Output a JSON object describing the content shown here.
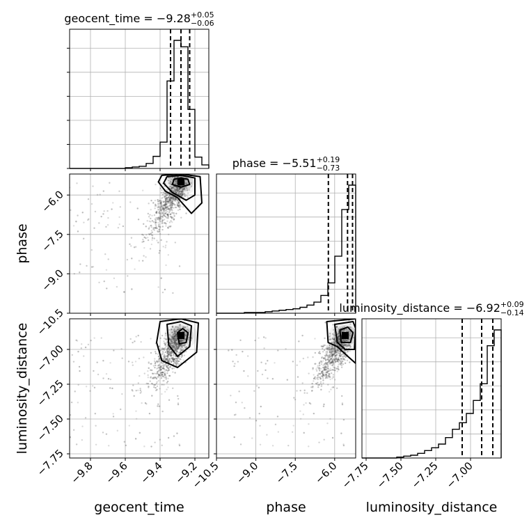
{
  "chart_data": {
    "type": "corner",
    "parameters": [
      {
        "name": "geocent_time",
        "axis_label": "geocent_time",
        "range": [
          -9.92,
          -9.12
        ],
        "ticks": [
          "−9.8",
          "−9.6",
          "−9.4",
          "−9.2"
        ],
        "tick_values": [
          -9.8,
          -9.6,
          -9.4,
          -9.2
        ],
        "title": {
          "prefix": "geocent_time = ",
          "median": "−9.28",
          "plus": "+0.05",
          "minus": "−0.06"
        },
        "quantiles": [
          -9.34,
          -9.28,
          -9.23
        ],
        "histogram": {
          "edges": [
            -9.92,
            -9.88,
            -9.84,
            -9.8,
            -9.76,
            -9.72,
            -9.68,
            -9.64,
            -9.6,
            -9.56,
            -9.52,
            -9.48,
            -9.44,
            -9.4,
            -9.36,
            -9.32,
            -9.28,
            -9.24,
            -9.2,
            -9.16,
            -9.12
          ],
          "counts": [
            0,
            0,
            0,
            0,
            0,
            0,
            0,
            0,
            1,
            2,
            3,
            7,
            17,
            37,
            123,
            180,
            171,
            83,
            16,
            5
          ]
        }
      },
      {
        "name": "phase",
        "axis_label": "phase",
        "range": [
          -10.5,
          -5.2
        ],
        "ticks": [
          "−10.5",
          "−9.0",
          "−7.5",
          "−6.0"
        ],
        "tick_values": [
          -10.5,
          -9.0,
          -7.5,
          -6.0
        ],
        "title": {
          "prefix": "phase = ",
          "median": "−5.51",
          "plus": "+0.19",
          "minus": "−0.73"
        },
        "quantiles": [
          -6.24,
          -5.51,
          -5.32
        ],
        "histogram": {
          "edges": [
            -10.5,
            -10.235,
            -9.97,
            -9.705,
            -9.44,
            -9.175,
            -8.91,
            -8.645,
            -8.38,
            -8.115,
            -7.85,
            -7.585,
            -7.32,
            -7.055,
            -6.79,
            -6.525,
            -6.26,
            -5.995,
            -5.73,
            -5.465,
            -5.2
          ],
          "counts": [
            0,
            0,
            0,
            0,
            1,
            1,
            1,
            2,
            3,
            4,
            5,
            6,
            8,
            11,
            15,
            24,
            41,
            77,
            140,
            173
          ]
        }
      },
      {
        "name": "luminosity_distance",
        "axis_label": "luminosity_distance",
        "range": [
          -7.78,
          -6.78
        ],
        "ticks": [
          "−7.75",
          "−7.50",
          "−7.25",
          "−7.00"
        ],
        "tick_values": [
          -7.75,
          -7.5,
          -7.25,
          -7.0
        ],
        "title": {
          "prefix": "luminosity_distance = ",
          "median": "−6.92",
          "plus": "+0.09",
          "minus": "−0.14"
        },
        "quantiles": [
          -7.06,
          -6.92,
          -6.84
        ],
        "histogram": {
          "edges": [
            -7.78,
            -7.73,
            -7.68,
            -7.63,
            -7.58,
            -7.53,
            -7.48,
            -7.43,
            -7.38,
            -7.33,
            -7.28,
            -7.23,
            -7.18,
            -7.13,
            -7.08,
            -7.03,
            -6.98,
            -6.93,
            -6.88,
            -6.83,
            -6.78
          ],
          "counts": [
            0,
            0,
            0,
            0,
            0,
            1,
            2,
            3,
            5,
            8,
            11,
            15,
            22,
            31,
            38,
            48,
            62,
            80,
            121,
            138
          ]
        }
      }
    ],
    "pairs": [
      {
        "x": "geocent_time",
        "y": "phase",
        "density_peak": [
          -9.28,
          -5.5
        ],
        "contours": [
          [
            [
              -9.32,
              -5.4
            ],
            [
              -9.28,
              -5.35
            ],
            [
              -9.24,
              -5.4
            ],
            [
              -9.23,
              -5.6
            ],
            [
              -9.28,
              -5.7
            ],
            [
              -9.33,
              -5.6
            ]
          ],
          [
            [
              -9.36,
              -5.3
            ],
            [
              -9.28,
              -5.25
            ],
            [
              -9.2,
              -5.35
            ],
            [
              -9.2,
              -6.0
            ],
            [
              -9.25,
              -6.2
            ],
            [
              -9.33,
              -5.9
            ],
            [
              -9.38,
              -5.55
            ]
          ],
          [
            [
              -9.39,
              -5.25
            ],
            [
              -9.28,
              -5.2
            ],
            [
              -9.17,
              -5.3
            ],
            [
              -9.16,
              -6.3
            ],
            [
              -9.22,
              -6.7
            ],
            [
              -9.3,
              -6.1
            ],
            [
              -9.37,
              -5.85
            ],
            [
              -9.41,
              -5.5
            ]
          ]
        ]
      },
      {
        "x": "geocent_time",
        "y": "luminosity_distance",
        "density_peak": [
          -9.28,
          -6.9
        ],
        "contours": [
          [
            [
              -9.3,
              -6.88
            ],
            [
              -9.27,
              -6.85
            ],
            [
              -9.24,
              -6.88
            ],
            [
              -9.25,
              -6.95
            ],
            [
              -9.29,
              -6.96
            ]
          ],
          [
            [
              -9.36,
              -6.82
            ],
            [
              -9.28,
              -6.8
            ],
            [
              -9.22,
              -6.83
            ],
            [
              -9.23,
              -6.98
            ],
            [
              -9.3,
              -7.05
            ],
            [
              -9.35,
              -6.97
            ]
          ],
          [
            [
              -9.4,
              -6.8
            ],
            [
              -9.28,
              -6.78
            ],
            [
              -9.18,
              -6.81
            ],
            [
              -9.19,
              -7.02
            ],
            [
              -9.3,
              -7.13
            ],
            [
              -9.39,
              -7.08
            ],
            [
              -9.42,
              -6.95
            ]
          ]
        ]
      },
      {
        "x": "phase",
        "y": "luminosity_distance",
        "density_peak": [
          -5.6,
          -6.9
        ],
        "contours": [
          [
            [
              -5.8,
              -6.86
            ],
            [
              -5.5,
              -6.84
            ],
            [
              -5.3,
              -6.88
            ],
            [
              -5.4,
              -6.95
            ],
            [
              -5.75,
              -6.95
            ]
          ],
          [
            [
              -6.0,
              -6.82
            ],
            [
              -5.3,
              -6.8
            ],
            [
              -5.2,
              -6.85
            ],
            [
              -5.25,
              -7.0
            ],
            [
              -5.6,
              -7.0
            ],
            [
              -5.9,
              -6.95
            ]
          ],
          [
            [
              -6.3,
              -6.8
            ],
            [
              -5.2,
              -6.78
            ],
            [
              -5.2,
              -7.1
            ],
            [
              -5.5,
              -7.05
            ],
            [
              -5.9,
              -6.98
            ],
            [
              -6.25,
              -6.95
            ]
          ]
        ]
      }
    ]
  }
}
